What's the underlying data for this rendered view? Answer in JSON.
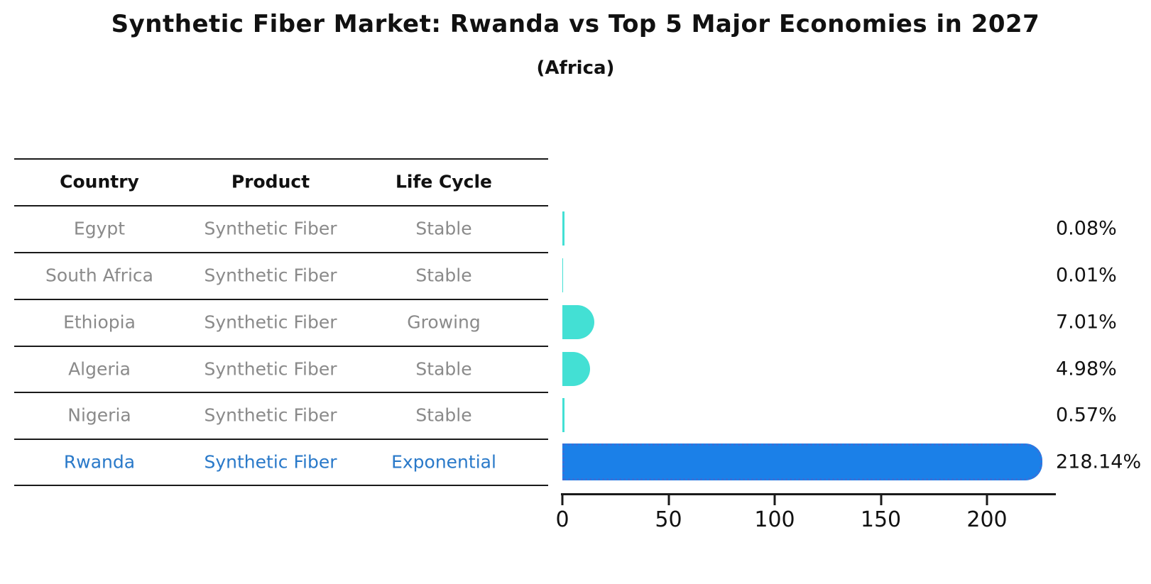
{
  "title": "Synthetic Fiber Market: Rwanda vs Top 5 Major Economies in 2027",
  "subtitle": "(Africa)",
  "table": {
    "headers": [
      "Country",
      "Product",
      "Life Cycle"
    ]
  },
  "chart_data": {
    "type": "bar",
    "orientation": "horizontal",
    "title": "Synthetic Fiber Market: Rwanda vs Top 5 Major Economies in 2027",
    "subtitle": "(Africa)",
    "categories": [
      "Egypt",
      "South Africa",
      "Ethiopia",
      "Algeria",
      "Nigeria",
      "Rwanda"
    ],
    "values": [
      0.08,
      0.01,
      7.01,
      4.98,
      0.57,
      218.14
    ],
    "rows": [
      {
        "country": "Egypt",
        "product": "Synthetic Fiber",
        "life_cycle": "Stable",
        "value": 0.08,
        "value_label": "0.08%",
        "highlight": false
      },
      {
        "country": "South Africa",
        "product": "Synthetic Fiber",
        "life_cycle": "Stable",
        "value": 0.01,
        "value_label": "0.01%",
        "highlight": false
      },
      {
        "country": "Ethiopia",
        "product": "Synthetic Fiber",
        "life_cycle": "Growing",
        "value": 7.01,
        "value_label": "7.01%",
        "highlight": false
      },
      {
        "country": "Algeria",
        "product": "Synthetic Fiber",
        "life_cycle": "Stable",
        "value": 4.98,
        "value_label": "4.98%",
        "highlight": false
      },
      {
        "country": "Nigeria",
        "product": "Synthetic Fiber",
        "life_cycle": "Stable",
        "value": 0.57,
        "value_label": "0.57%",
        "highlight": false
      },
      {
        "country": "Rwanda",
        "product": "Synthetic Fiber",
        "life_cycle": "Exponential",
        "value": 218.14,
        "value_label": "218.14%",
        "highlight": true
      }
    ],
    "x_ticks": [
      0,
      50,
      100,
      150,
      200
    ],
    "xlim": [
      0,
      230
    ],
    "grid": false,
    "legend": false,
    "colors": {
      "bar": "#43e0d4",
      "highlight_bar": "#1b80e8",
      "highlight_bar_edge": "#3a6fd8",
      "highlight_text": "#2979c9",
      "row_text": "#8a8a8a",
      "header_text": "#111111"
    }
  }
}
